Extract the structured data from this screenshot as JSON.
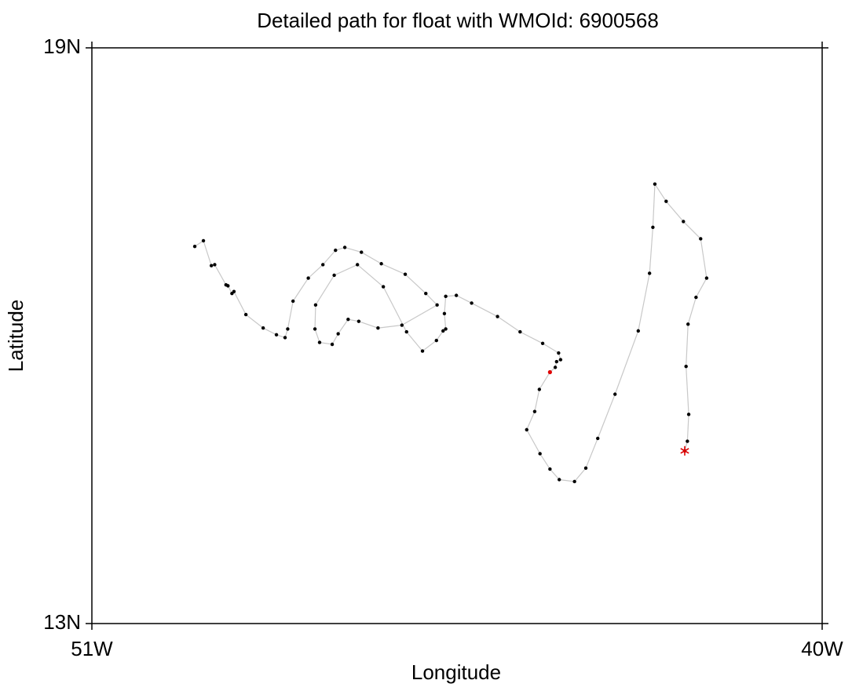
{
  "chart_data": {
    "type": "line",
    "title": "Detailed path for float with WMOId: 6900568",
    "xlabel": "Longitude",
    "ylabel": "Latitude",
    "xlim": [
      -51,
      -40
    ],
    "ylim": [
      13,
      19
    ],
    "xticks": [
      {
        "value": -51,
        "label": "51W"
      },
      {
        "value": -40,
        "label": "40W"
      }
    ],
    "yticks": [
      {
        "value": 13,
        "label": "13N"
      },
      {
        "value": 19,
        "label": "19N"
      }
    ],
    "series": [
      {
        "color": "#c8c8c8",
        "marker_color": "#000000",
        "x": [
          -49.45,
          -49.32,
          -49.2,
          -49.15,
          -48.98,
          -48.95,
          -48.89,
          -48.86,
          -48.68,
          -48.42,
          -48.22,
          -48.09,
          -48.05,
          -47.97,
          -47.74,
          -47.52,
          -47.33,
          -47.19,
          -46.94,
          -46.64,
          -46.28,
          -45.97,
          -45.8,
          -46.33,
          -46.69,
          -46.98,
          -47.14,
          -47.29,
          -47.38,
          -47.57,
          -47.64,
          -47.63,
          -47.35,
          -47.0,
          -46.61,
          -46.26,
          -46.02,
          -45.81,
          -45.71,
          -45.67,
          -45.69,
          -45.67,
          -45.51,
          -45.28,
          -44.89,
          -44.55,
          -44.21,
          -43.97,
          -43.94,
          -44.0,
          -44.02,
          -44.1,
          -44.26,
          -44.33,
          -44.45,
          -44.25,
          -44.1,
          -43.96,
          -43.73,
          -43.56,
          -43.38,
          -43.12,
          -42.77,
          -42.6,
          -42.55,
          -42.52,
          -42.35,
          -42.09,
          -41.83,
          -41.74,
          -41.9,
          -42.02,
          -42.05,
          -42.01,
          -42.03,
          -42.07
        ],
        "values": [
          16.93,
          16.99,
          16.73,
          16.74,
          16.53,
          16.52,
          16.44,
          16.46,
          16.22,
          16.08,
          16.01,
          15.98,
          16.07,
          16.36,
          16.6,
          16.74,
          16.89,
          16.92,
          16.87,
          16.75,
          16.64,
          16.44,
          16.32,
          16.11,
          16.08,
          16.15,
          16.17,
          16.02,
          15.91,
          15.93,
          16.07,
          16.32,
          16.63,
          16.74,
          16.51,
          16.04,
          15.84,
          15.95,
          16.05,
          16.07,
          16.23,
          16.41,
          16.42,
          16.34,
          16.2,
          16.04,
          15.92,
          15.82,
          15.75,
          15.73,
          15.67,
          15.62,
          15.44,
          15.21,
          15.02,
          14.77,
          14.61,
          14.5,
          14.48,
          14.62,
          14.93,
          15.39,
          16.05,
          16.65,
          17.13,
          17.58,
          17.4,
          17.19,
          17.01,
          16.6,
          16.4,
          16.12,
          15.68,
          15.18,
          14.9,
          14.8
        ]
      }
    ],
    "markers": [
      {
        "x": -44.1,
        "y": 15.62,
        "color": "#e00000",
        "symbol": "dot"
      },
      {
        "x": -42.07,
        "y": 14.8,
        "color": "#e00000",
        "symbol": "star"
      }
    ]
  }
}
